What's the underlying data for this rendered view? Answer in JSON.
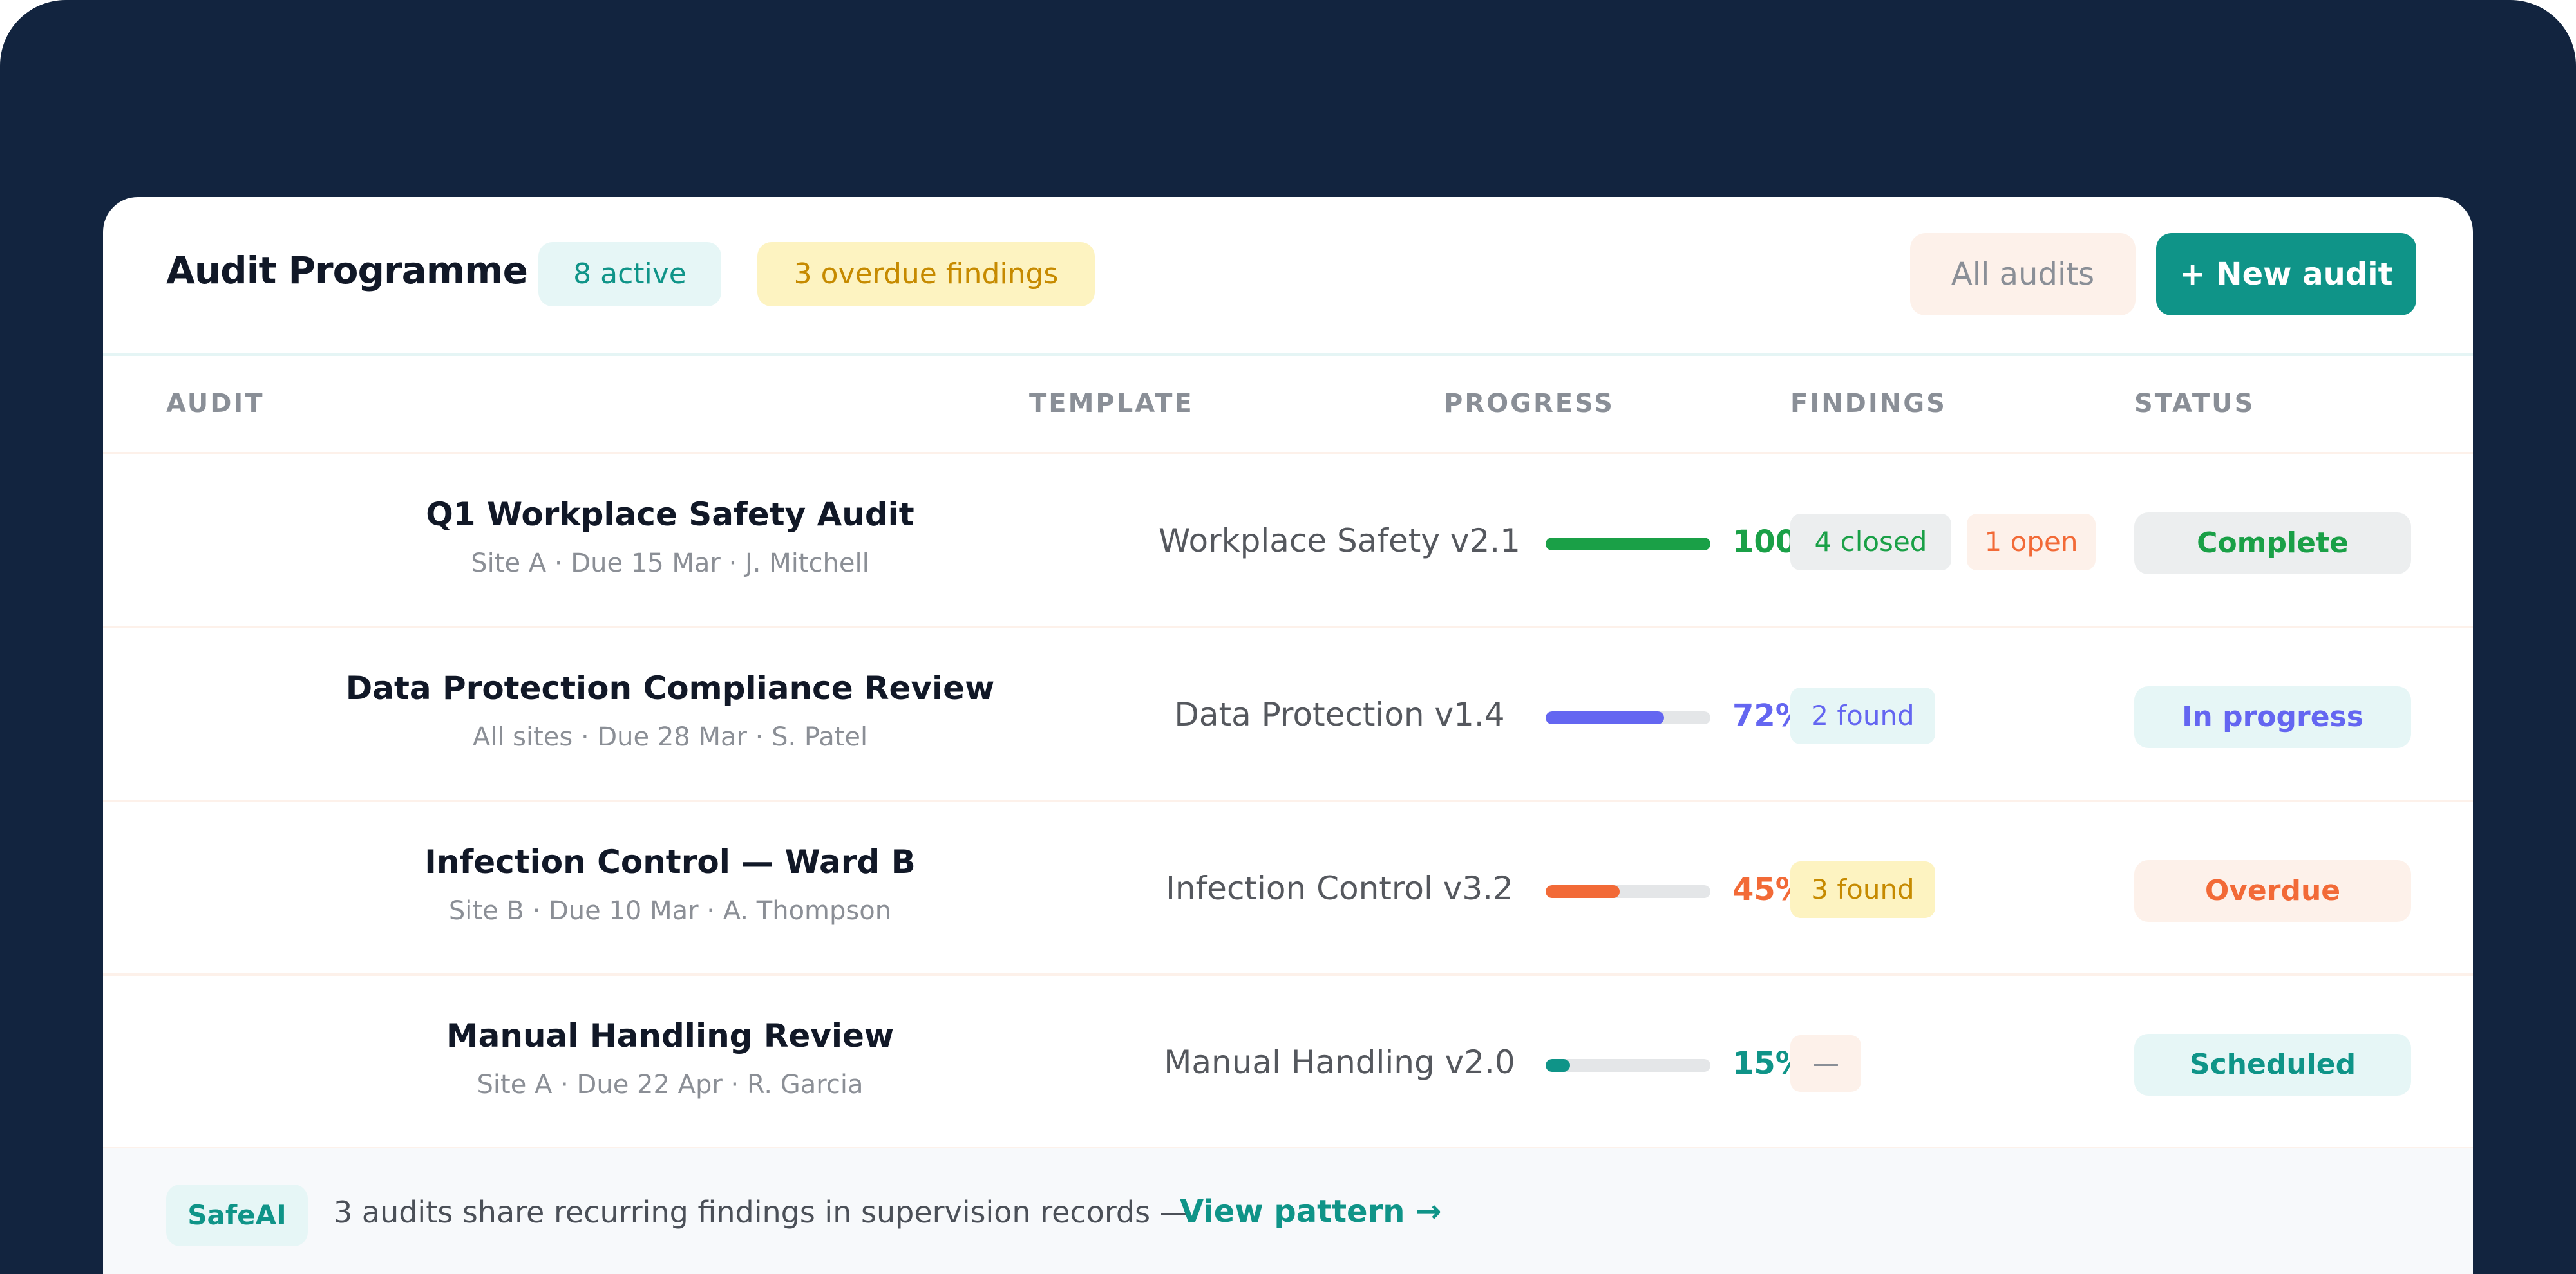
{
  "colors": {
    "background": "#12243f",
    "accent": "#0f9488",
    "accent_soft": "#e6f6f6",
    "warning": "#c68a00",
    "warning_soft": "#fdf3c1",
    "danger": "#f26a37",
    "danger_soft": "#fdf1ea",
    "success": "#1aa047",
    "indigo": "#6466f1",
    "neutral_soft": "#eceeef",
    "muted": "#8a8f97"
  },
  "header": {
    "title": "Audit Programme",
    "active_badge": "8 active",
    "overdue_badge": "3 overdue findings",
    "all_audits_button": "All audits",
    "new_audit_button": "+ New audit"
  },
  "columns": {
    "audit": "AUDIT",
    "template": "TEMPLATE",
    "progress": "PROGRESS",
    "findings": "FINDINGS",
    "status": "STATUS"
  },
  "rows": [
    {
      "name": "Q1 Workplace Safety Audit",
      "meta": "Site A · Due 15 Mar · J. Mitchell",
      "template": "Workplace Safety v2.1",
      "progress": 1.0,
      "progress_label": "100%",
      "progress_color": "#1aa047",
      "findings": [
        {
          "label": "4 closed",
          "fg": "#1aa047",
          "bg": "#eceeef"
        },
        {
          "label": "1 open",
          "fg": "#f26a37",
          "bg": "#fdf1ea"
        }
      ],
      "status": "Complete",
      "status_fg": "#1aa047",
      "status_bg": "#eceeef"
    },
    {
      "name": "Data Protection Compliance Review",
      "meta": "All sites · Due 28 Mar · S. Patel",
      "template": "Data Protection v1.4",
      "progress": 0.72,
      "progress_label": "72%",
      "progress_color": "#6466f1",
      "findings": [
        {
          "label": "2 found",
          "fg": "#6466f1",
          "bg": "#e6f6f6"
        }
      ],
      "status": "In progress",
      "status_fg": "#6466f1",
      "status_bg": "#e6f6f6"
    },
    {
      "name": "Infection Control — Ward B",
      "meta": "Site B · Due 10 Mar · A. Thompson",
      "template": "Infection Control v3.2",
      "progress": 0.45,
      "progress_label": "45%",
      "progress_color": "#f26a37",
      "findings": [
        {
          "label": "3 found",
          "fg": "#c68a00",
          "bg": "#fdf3c1"
        }
      ],
      "status": "Overdue",
      "status_fg": "#f26a37",
      "status_bg": "#fdf1ea"
    },
    {
      "name": "Manual Handling Review",
      "meta": "Site A · Due 22 Apr · R. Garcia",
      "template": "Manual Handling v2.0",
      "progress": 0.15,
      "progress_label": "15%",
      "progress_color": "#0f9488",
      "findings": [
        {
          "label": "—",
          "fg": "#8a8f97",
          "bg": "#fdf1ea"
        }
      ],
      "status": "Scheduled",
      "status_fg": "#0f9488",
      "status_bg": "#e6f6f6"
    }
  ],
  "footer": {
    "badge": "SafeAI",
    "message": "3 audits share recurring findings in supervision records —",
    "link": "View pattern →"
  }
}
